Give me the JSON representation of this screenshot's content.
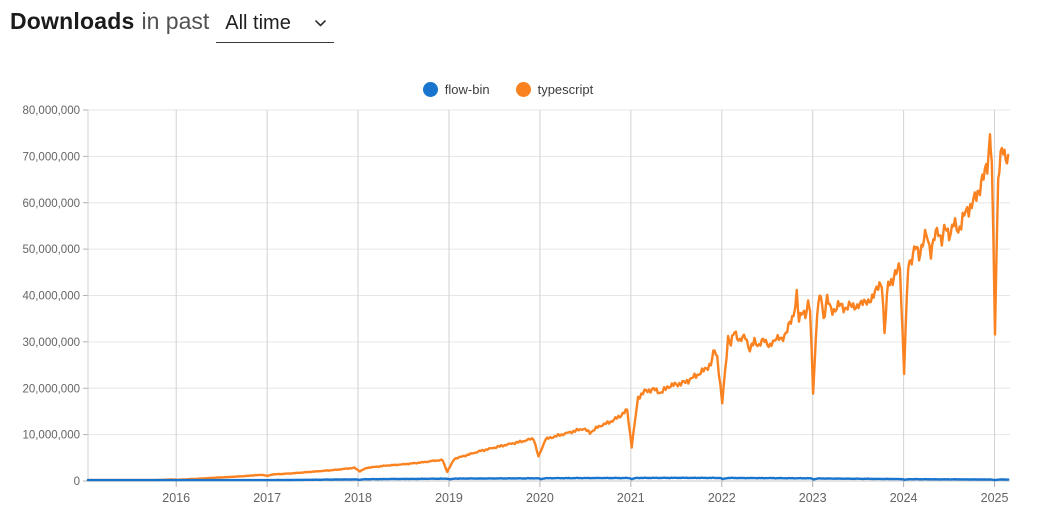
{
  "header": {
    "title_bold": "Downloads",
    "title_rest": "in past",
    "period_selector": {
      "value": "All time",
      "icon": "chevron-down"
    }
  },
  "legend": [
    {
      "label": "flow-bin",
      "color": "#1874cd"
    },
    {
      "label": "typescript",
      "color": "#fb8220"
    }
  ],
  "chart_data": {
    "type": "line",
    "title": "Downloads in past All time",
    "xlabel": "",
    "ylabel": "",
    "grid": true,
    "legend_position": "top-center",
    "x_axis": {
      "domain": [
        2015.03,
        2025.17
      ],
      "ticks": [
        2016,
        2017,
        2018,
        2019,
        2020,
        2021,
        2022,
        2023,
        2024,
        2025
      ],
      "labels": [
        "2016",
        "2017",
        "2018",
        "2019",
        "2020",
        "2021",
        "2022",
        "2023",
        "2024",
        "2025"
      ]
    },
    "y_axis": {
      "domain": [
        0,
        80000000.0
      ],
      "ticks": [
        0,
        10000000.0,
        20000000.0,
        30000000.0,
        40000000.0,
        50000000.0,
        60000000.0,
        70000000.0,
        80000000.0
      ],
      "labels": [
        "0",
        "10,000,000",
        "20,000,000",
        "30,000,000",
        "40,000,000",
        "50,000,000",
        "60,000,000",
        "70,000,000",
        "80,000,000"
      ]
    },
    "style": {
      "h_grid": "#e6e6e6",
      "v_grid": "#d2d2d2",
      "axis": "#c9c9c9",
      "tick": "#b0b0b0",
      "label_color": "#646464"
    },
    "series": [
      {
        "name": "flow-bin",
        "color": "#1874cd",
        "noise": 0.06,
        "points": [
          [
            2015.03,
            10000.0
          ],
          [
            2015.5,
            30000.0
          ],
          [
            2016.0,
            70000.0
          ],
          [
            2016.5,
            130000.0
          ],
          [
            2017.0,
            180000.0
          ],
          [
            2017.5,
            270000.0
          ],
          [
            2017.98,
            350000.0
          ],
          [
            2018.01,
            250000.0
          ],
          [
            2018.06,
            380000.0
          ],
          [
            2018.5,
            450000.0
          ],
          [
            2018.98,
            500000.0
          ],
          [
            2019.01,
            350000.0
          ],
          [
            2019.06,
            520000.0
          ],
          [
            2019.5,
            550000.0
          ],
          [
            2019.98,
            580000.0
          ],
          [
            2020.01,
            400000.0
          ],
          [
            2020.06,
            600000.0
          ],
          [
            2020.5,
            630000.0
          ],
          [
            2020.98,
            650000.0
          ],
          [
            2021.01,
            420000.0
          ],
          [
            2021.06,
            660000.0
          ],
          [
            2021.5,
            680000.0
          ],
          [
            2021.98,
            660000.0
          ],
          [
            2022.01,
            420000.0
          ],
          [
            2022.06,
            650000.0
          ],
          [
            2022.5,
            620000.0
          ],
          [
            2022.98,
            580000.0
          ],
          [
            2023.01,
            350000.0
          ],
          [
            2023.06,
            550000.0
          ],
          [
            2023.5,
            480000.0
          ],
          [
            2023.98,
            420000.0
          ],
          [
            2024.01,
            260000.0
          ],
          [
            2024.06,
            400000.0
          ],
          [
            2024.5,
            360000.0
          ],
          [
            2024.96,
            330000.0
          ],
          [
            2025.0,
            200000.0
          ],
          [
            2025.05,
            320000.0
          ],
          [
            2025.15,
            310000.0
          ]
        ]
      },
      {
        "name": "typescript",
        "color": "#fb8220",
        "noise": 0.02,
        "points": [
          [
            2015.03,
            40000.0
          ],
          [
            2015.25,
            70000.0
          ],
          [
            2015.5,
            120000.0
          ],
          [
            2015.75,
            200000.0
          ],
          [
            2015.96,
            330000.0
          ],
          [
            2016.02,
            270000.0
          ],
          [
            2016.25,
            500000.0
          ],
          [
            2016.5,
            780000.0
          ],
          [
            2016.75,
            1050000.0
          ],
          [
            2016.94,
            1350000.0
          ],
          [
            2017.005,
            1100000.0
          ],
          [
            2017.06,
            1420000.0
          ],
          [
            2017.25,
            1620000.0
          ],
          [
            2017.5,
            2000000.0
          ],
          [
            2017.75,
            2400000.0
          ],
          [
            2017.96,
            2850000.0
          ],
          [
            2018.02,
            2100000.0
          ],
          [
            2018.1,
            2850000.0
          ],
          [
            2018.3,
            3300000.0
          ],
          [
            2018.5,
            3600000.0
          ],
          [
            2018.7,
            4000000.0
          ],
          [
            2018.85,
            4400000.0
          ],
          [
            2018.93,
            4500000.0
          ],
          [
            2018.98,
            2000000.0
          ],
          [
            2019.06,
            4800000.0
          ],
          [
            2019.2,
            5600000.0
          ],
          [
            2019.35,
            6500000.0
          ],
          [
            2019.5,
            7200000.0
          ],
          [
            2019.65,
            7900000.0
          ],
          [
            2019.8,
            8500000.0
          ],
          [
            2019.93,
            9200000.0
          ],
          [
            2019.985,
            5200000.0
          ],
          [
            2020.06,
            9000000.0
          ],
          [
            2020.2,
            9800000.0
          ],
          [
            2020.35,
            10600000.0
          ],
          [
            2020.48,
            11300000.0
          ],
          [
            2020.55,
            10400000.0
          ],
          [
            2020.65,
            11800000.0
          ],
          [
            2020.78,
            12800000.0
          ],
          [
            2020.88,
            14000000.0
          ],
          [
            2020.96,
            15300000.0
          ],
          [
            2021.01,
            7400000.0
          ],
          [
            2021.08,
            18000000.0
          ],
          [
            2021.15,
            19300000.0
          ],
          [
            2021.25,
            19800000.0
          ],
          [
            2021.33,
            19000000.0
          ],
          [
            2021.42,
            20500000.0
          ],
          [
            2021.5,
            20800000.0
          ],
          [
            2021.6,
            21300000.0
          ],
          [
            2021.7,
            22500000.0
          ],
          [
            2021.8,
            23800000.0
          ],
          [
            2021.88,
            25200000.0
          ],
          [
            2021.92,
            28300000.0
          ],
          [
            2021.95,
            26800000.0
          ],
          [
            2022.005,
            16800000.0
          ],
          [
            2022.07,
            31000000.0
          ],
          [
            2022.1,
            29300000.0
          ],
          [
            2022.14,
            32500000.0
          ],
          [
            2022.2,
            30000000.0
          ],
          [
            2022.26,
            31500000.0
          ],
          [
            2022.31,
            27900000.0
          ],
          [
            2022.36,
            30500000.0
          ],
          [
            2022.41,
            29000000.0
          ],
          [
            2022.47,
            30800000.0
          ],
          [
            2022.53,
            28700000.0
          ],
          [
            2022.6,
            31200000.0
          ],
          [
            2022.66,
            30200000.0
          ],
          [
            2022.72,
            32800000.0
          ],
          [
            2022.76,
            34200000.0
          ],
          [
            2022.79,
            35800000.0
          ],
          [
            2022.825,
            40700000.0
          ],
          [
            2022.85,
            34300000.0
          ],
          [
            2022.89,
            36800000.0
          ],
          [
            2022.92,
            36000000.0
          ],
          [
            2022.95,
            38000000.0
          ],
          [
            2022.97,
            37000000.0
          ],
          [
            2023.005,
            19300000.0
          ],
          [
            2023.05,
            36400000.0
          ],
          [
            2023.09,
            40300000.0
          ],
          [
            2023.12,
            35200000.0
          ],
          [
            2023.16,
            39400000.0
          ],
          [
            2023.2,
            36800000.0
          ],
          [
            2023.25,
            37000000.0
          ],
          [
            2023.31,
            38200000.0
          ],
          [
            2023.37,
            36900000.0
          ],
          [
            2023.43,
            38400000.0
          ],
          [
            2023.49,
            37000000.0
          ],
          [
            2023.55,
            39200000.0
          ],
          [
            2023.61,
            38000000.0
          ],
          [
            2023.67,
            40500000.0
          ],
          [
            2023.72,
            41500000.0
          ],
          [
            2023.76,
            43000000.0
          ],
          [
            2023.79,
            32000000.0
          ],
          [
            2023.83,
            42500000.0
          ],
          [
            2023.88,
            43500000.0
          ],
          [
            2023.92,
            44800000.0
          ],
          [
            2023.96,
            46500000.0
          ],
          [
            2024.005,
            23500000.0
          ],
          [
            2024.05,
            46500000.0
          ],
          [
            2024.09,
            48200000.0
          ],
          [
            2024.13,
            50400000.0
          ],
          [
            2024.17,
            48600000.0
          ],
          [
            2024.21,
            51500000.0
          ],
          [
            2024.25,
            53000000.0
          ],
          [
            2024.3,
            49500000.0
          ],
          [
            2024.34,
            52500000.0
          ],
          [
            2024.38,
            54000000.0
          ],
          [
            2024.42,
            52000000.0
          ],
          [
            2024.46,
            54500000.0
          ],
          [
            2024.5,
            53000000.0
          ],
          [
            2024.55,
            55500000.0
          ],
          [
            2024.6,
            54000000.0
          ],
          [
            2024.65,
            56500000.0
          ],
          [
            2024.7,
            58500000.0
          ],
          [
            2024.75,
            59500000.0
          ],
          [
            2024.8,
            61500000.0
          ],
          [
            2024.84,
            63500000.0
          ],
          [
            2024.88,
            65500000.0
          ],
          [
            2024.92,
            68000000.0
          ],
          [
            2024.95,
            74500000.0
          ],
          [
            2024.97,
            69500000.0
          ],
          [
            2025.005,
            32000000.0
          ],
          [
            2025.04,
            66500000.0
          ],
          [
            2025.08,
            71500000.0
          ],
          [
            2025.11,
            69500000.0
          ],
          [
            2025.15,
            70300000.0
          ]
        ]
      }
    ]
  }
}
